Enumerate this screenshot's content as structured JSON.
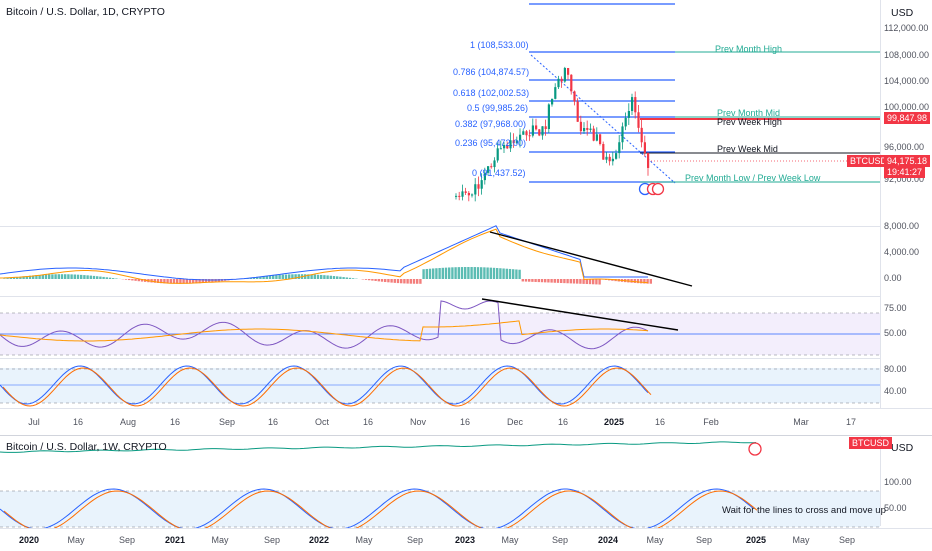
{
  "main_chart": {
    "title": "Bitcoin / U.S. Dollar, 1D, CRYPTO",
    "currency_button": "USD",
    "price_axis": [
      "112,000.00",
      "108,000.00",
      "104,000.00",
      "100,000.00",
      "96,000.00",
      "92,000.00"
    ],
    "price_badges": {
      "level_price": "99,847.98",
      "symbol": "BTCUSD",
      "last_price": "94,175.18",
      "countdown": "19:41:27"
    },
    "fib_levels": [
      {
        "label": "1 (108,533.00)"
      },
      {
        "label": "0.786 (104,874.57)"
      },
      {
        "label": "0.618 (102,002.53)"
      },
      {
        "label": "0.5 (99,985.26)"
      },
      {
        "label": "0.382 (97,968.00)"
      },
      {
        "label": "0.236 (95,472.00)"
      },
      {
        "label": "0 (91,437.52)"
      }
    ],
    "level_labels": {
      "prev_month_high": "Prev Month High",
      "prev_month_mid": "Prev Month Mid",
      "prev_week_high": "Prev Week High",
      "prev_week_mid": "Prev Week Mid",
      "prev_month_low_week_low": "Prev Month Low / Prev Week Low"
    },
    "colors": {
      "fib": "#2962ff",
      "level_green": "#22ab94",
      "level_red": "#f23645",
      "up": "#089981",
      "down": "#f23645"
    }
  },
  "macd_pane": {
    "axis": [
      "8,000.00",
      "4,000.00",
      "0.00"
    ]
  },
  "rsi_pane": {
    "axis": [
      "75.00",
      "50.00"
    ]
  },
  "stoch_pane": {
    "axis": [
      "80.00",
      "40.00"
    ]
  },
  "time_axis_1d": [
    "Jul",
    "16",
    "Aug",
    "16",
    "Sep",
    "16",
    "Oct",
    "16",
    "Nov",
    "16",
    "Dec",
    "16",
    "2025",
    "16",
    "Feb",
    "Mar",
    "17"
  ],
  "weekly_chart": {
    "title": "Bitcoin / U.S. Dollar, 1W, CRYPTO",
    "currency_button": "USD",
    "symbol_badge": "BTCUSD",
    "axis": [
      "100.00",
      "50.00"
    ],
    "note": "Wait for the lines to cross and move up",
    "time_axis": [
      "2020",
      "May",
      "Sep",
      "2021",
      "May",
      "Sep",
      "2022",
      "May",
      "Sep",
      "2023",
      "May",
      "Sep",
      "2024",
      "May",
      "Sep",
      "2025",
      "May",
      "Sep"
    ]
  }
}
